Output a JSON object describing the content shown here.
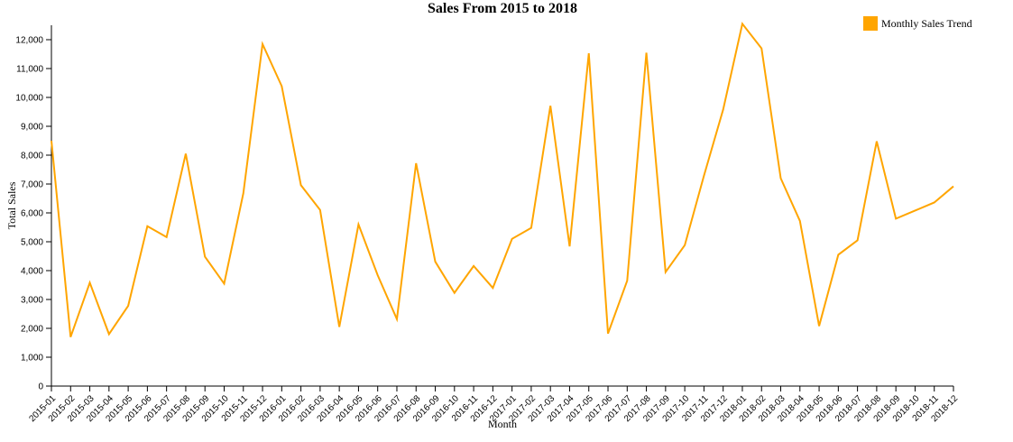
{
  "chart_data": {
    "type": "line",
    "title": "Sales From 2015 to 2018",
    "xlabel": "Month",
    "ylabel": "Total Sales",
    "ylim": [
      0,
      12500
    ],
    "y_ticks": [
      0,
      1000,
      2000,
      3000,
      4000,
      5000,
      6000,
      7000,
      8000,
      9000,
      10000,
      11000,
      12000
    ],
    "y_tick_labels": [
      "0",
      "1,000",
      "2,000",
      "3,000",
      "4,000",
      "5,000",
      "6,000",
      "7,000",
      "8,000",
      "9,000",
      "10,000",
      "11,000",
      "12,000"
    ],
    "grid": false,
    "legend_position": "top-right",
    "categories": [
      "2015-01",
      "2015-02",
      "2015-03",
      "2015-04",
      "2015-05",
      "2015-06",
      "2015-07",
      "2015-08",
      "2015-09",
      "2015-10",
      "2015-11",
      "2015-12",
      "2016-01",
      "2016-02",
      "2016-03",
      "2016-04",
      "2016-05",
      "2016-06",
      "2016-07",
      "2016-08",
      "2016-09",
      "2016-10",
      "2016-11",
      "2016-12",
      "2017-01",
      "2017-02",
      "2017-03",
      "2017-04",
      "2017-05",
      "2017-06",
      "2017-07",
      "2017-08",
      "2017-09",
      "2017-10",
      "2017-11",
      "2017-12",
      "2018-01",
      "2018-02",
      "2018-03",
      "2018-04",
      "2018-05",
      "2018-06",
      "2018-07",
      "2018-08",
      "2018-09",
      "2018-10",
      "2018-11",
      "2018-12"
    ],
    "series": [
      {
        "name": "Monthly Sales Trend",
        "color": "#FFA500",
        "values": [
          8500,
          1700,
          3580,
          1800,
          2780,
          5540,
          5160,
          8050,
          4480,
          3550,
          6680,
          11850,
          10390,
          6960,
          6100,
          2050,
          5600,
          3840,
          2320,
          7720,
          4310,
          3230,
          4160,
          3400,
          5100,
          5480,
          9710,
          4840,
          11530,
          1820,
          3650,
          11550,
          3950,
          4880,
          7290,
          9580,
          12550,
          11700,
          7200,
          5720,
          2080,
          4550,
          5050,
          8480,
          5800,
          6080,
          6360,
          6920
        ]
      }
    ]
  }
}
